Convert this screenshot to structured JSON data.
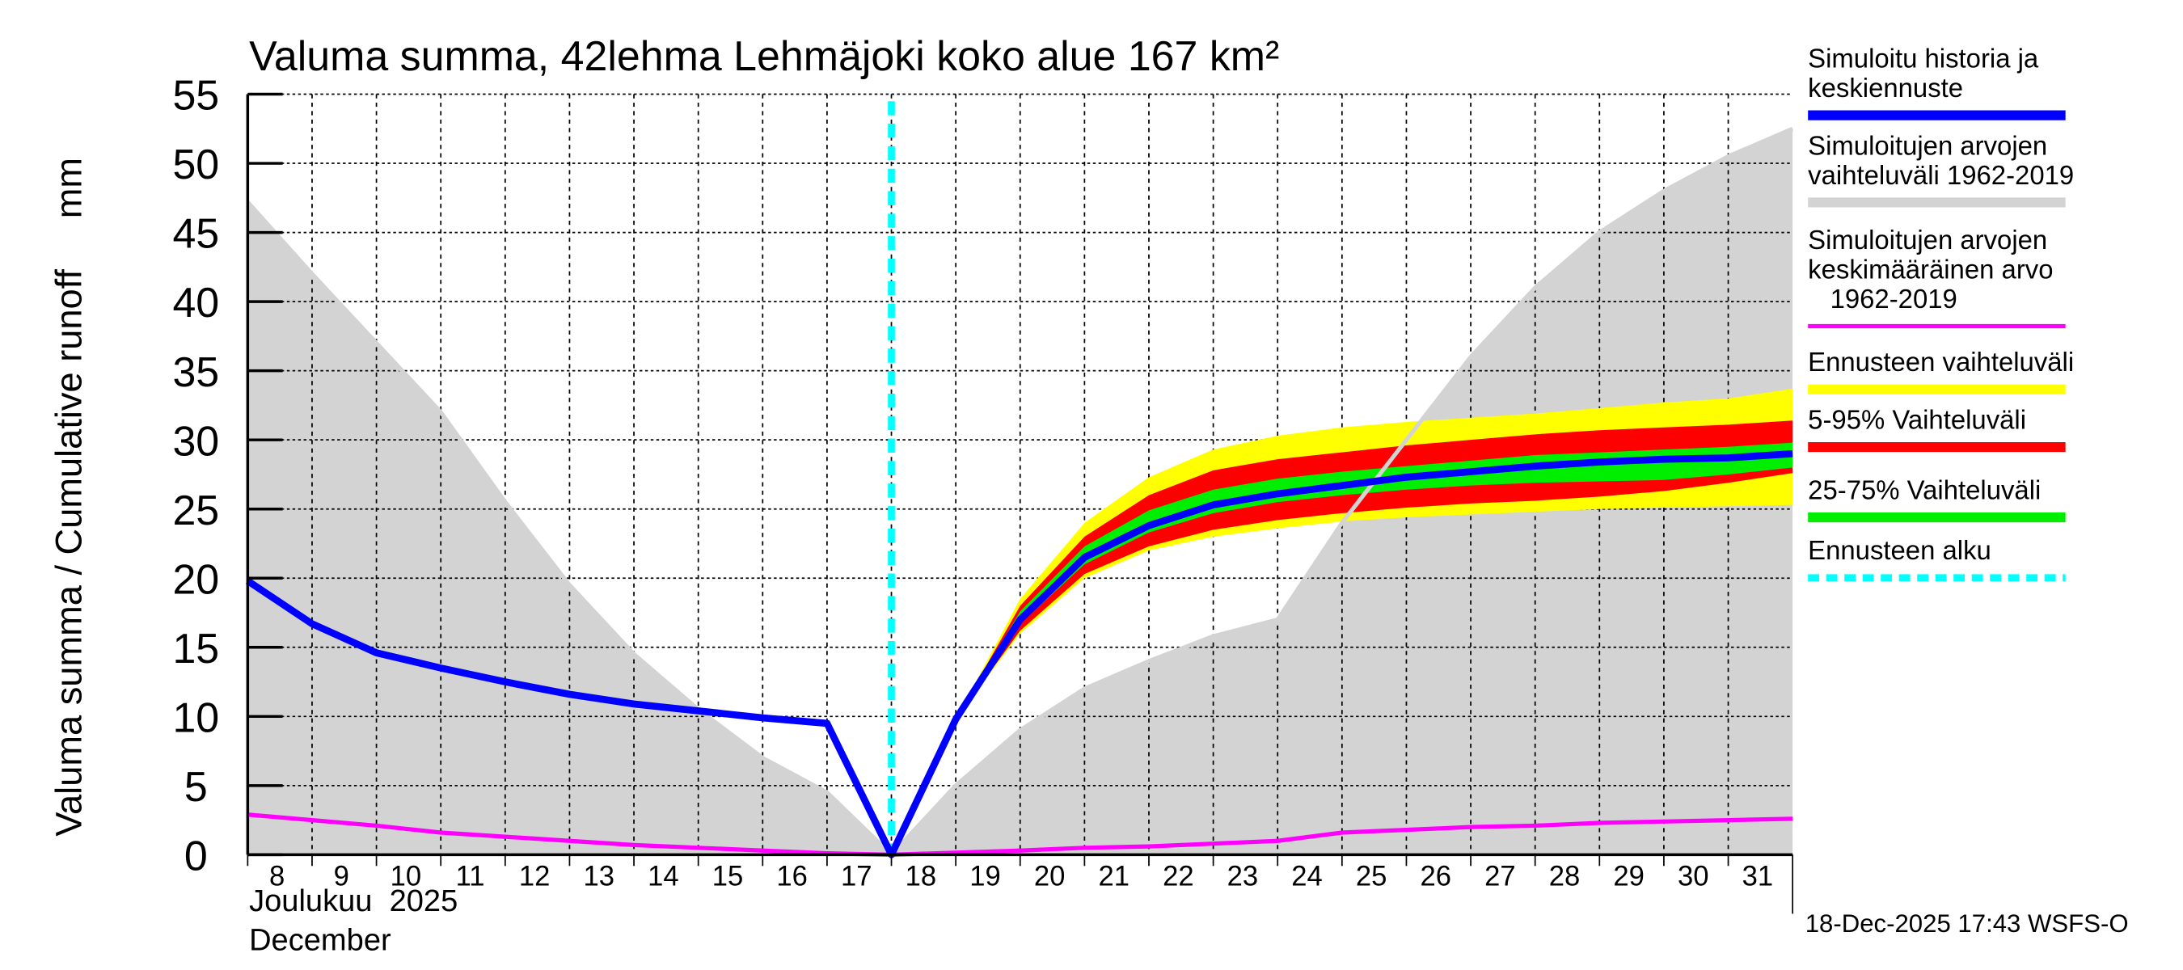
{
  "chart_data": {
    "type": "area",
    "title": "Valuma summa, 42lehma Lehmäjoki koko alue 167 km²",
    "ylabel": "Valuma summa / Cumulative runoff     mm",
    "xlabel_line1": "Joulukuu  2025",
    "xlabel_line2": "December",
    "ylim": [
      0,
      55
    ],
    "yticks": [
      0,
      5,
      10,
      15,
      20,
      25,
      30,
      35,
      40,
      45,
      50,
      55
    ],
    "xlim": [
      8,
      32
    ],
    "xtick_labels": [
      "8",
      "9",
      "10",
      "11",
      "12",
      "13",
      "14",
      "15",
      "16",
      "17",
      "18",
      "19",
      "20",
      "21",
      "22",
      "23",
      "24",
      "25",
      "26",
      "27",
      "28",
      "29",
      "30",
      "31"
    ],
    "grid": true,
    "forecast_start": 18,
    "x": [
      8,
      9,
      10,
      11,
      12,
      13,
      14,
      15,
      16,
      17,
      18,
      19,
      20,
      21,
      22,
      23,
      24,
      25,
      26,
      27,
      28,
      29,
      30,
      31,
      32
    ],
    "series": [
      {
        "name": "Simuloitu historia ja keskiennuste",
        "values": [
          19.8,
          16.7,
          14.6,
          13.5,
          12.5,
          11.6,
          10.9,
          10.4,
          9.9,
          9.5,
          0,
          9.8,
          17,
          21.5,
          23.8,
          25.3,
          26.1,
          26.7,
          27.3,
          27.7,
          28.1,
          28.4,
          28.6,
          28.7,
          29.0
        ]
      },
      {
        "name": "Simuloitujen arvojen vaihteluväli 1962-2019",
        "upper": [
          47.2,
          42,
          37,
          32,
          25.5,
          19.5,
          14.5,
          10.5,
          7,
          4.5,
          0,
          5,
          9,
          12,
          14,
          15.8,
          17,
          24,
          30,
          36,
          41,
          45,
          48,
          50.5,
          52.5
        ],
        "lower": [
          0,
          0,
          0,
          0,
          0,
          0,
          0,
          0,
          0,
          0,
          0,
          0,
          0,
          0,
          0,
          0,
          0,
          0,
          0,
          0,
          0,
          0,
          0,
          0,
          0
        ]
      },
      {
        "name": "Simuloitujen arvojen keskimääräinen arvo 1962-2019",
        "values": [
          2.9,
          2.5,
          2.1,
          1.6,
          1.3,
          1.0,
          0.7,
          0.5,
          0.3,
          0.1,
          0,
          0.15,
          0.3,
          0.5,
          0.6,
          0.8,
          1.0,
          1.6,
          1.8,
          2.0,
          2.1,
          2.3,
          2.4,
          2.5,
          2.6
        ]
      }
    ],
    "bands_x": [
      19,
      20,
      21,
      22,
      23,
      24,
      25,
      26,
      27,
      28,
      29,
      30,
      31,
      32
    ],
    "bands": [
      {
        "name": "Ennusteen vaihteluväli",
        "upper": [
          9.8,
          18.5,
          24,
          27.3,
          29.3,
          30.3,
          30.9,
          31.3,
          31.6,
          31.9,
          32.3,
          32.7,
          33,
          33.7
        ],
        "lower": [
          9.8,
          16,
          20,
          22,
          23,
          23.6,
          24.1,
          24.4,
          24.6,
          24.8,
          25,
          25.1,
          25.2,
          25.3
        ]
      },
      {
        "name": "5-95% Vaihteluväli",
        "upper": [
          9.8,
          18,
          23,
          26,
          27.8,
          28.6,
          29.1,
          29.6,
          30,
          30.4,
          30.7,
          30.9,
          31.1,
          31.4
        ],
        "lower": [
          9.8,
          16.2,
          20.3,
          22.3,
          23.5,
          24.2,
          24.7,
          25.1,
          25.4,
          25.6,
          25.9,
          26.3,
          26.9,
          27.6
        ]
      },
      {
        "name": "25-75% Vaihteluväli",
        "upper": [
          9.8,
          17.6,
          22.3,
          24.9,
          26.4,
          27.2,
          27.7,
          28.1,
          28.5,
          28.9,
          29.1,
          29.3,
          29.5,
          29.8
        ],
        "lower": [
          9.8,
          16.7,
          21,
          23.3,
          24.7,
          25.5,
          26,
          26.4,
          26.7,
          26.9,
          27,
          27.1,
          27.5,
          28
        ]
      }
    ],
    "legend": [
      {
        "lines": [
          "Simuloitu historia ja",
          "keskiennuste"
        ],
        "color": "#0000ff",
        "style": "solid"
      },
      {
        "lines": [
          "Simuloitujen arvojen",
          "vaihteluväli 1962-2019"
        ],
        "color": "#d3d3d3",
        "style": "solid"
      },
      {
        "lines": [
          "Simuloitujen arvojen",
          "keskimääräinen arvo",
          "   1962-2019"
        ],
        "color": "#ff00ff",
        "style": "thin"
      },
      {
        "lines": [
          "Ennusteen vaihteluväli"
        ],
        "color": "#ffff00",
        "style": "solid"
      },
      {
        "lines": [
          "5-95% Vaihteluväli"
        ],
        "color": "#ff0000",
        "style": "solid"
      },
      {
        "lines": [
          "25-75% Vaihteluväli"
        ],
        "color": "#00ee00",
        "style": "solid"
      },
      {
        "lines": [
          "Ennusteen alku"
        ],
        "color": "#00ffff",
        "style": "dashed"
      }
    ],
    "legend_position": "right",
    "footer": "18-Dec-2025 17:43 WSFS-O"
  }
}
